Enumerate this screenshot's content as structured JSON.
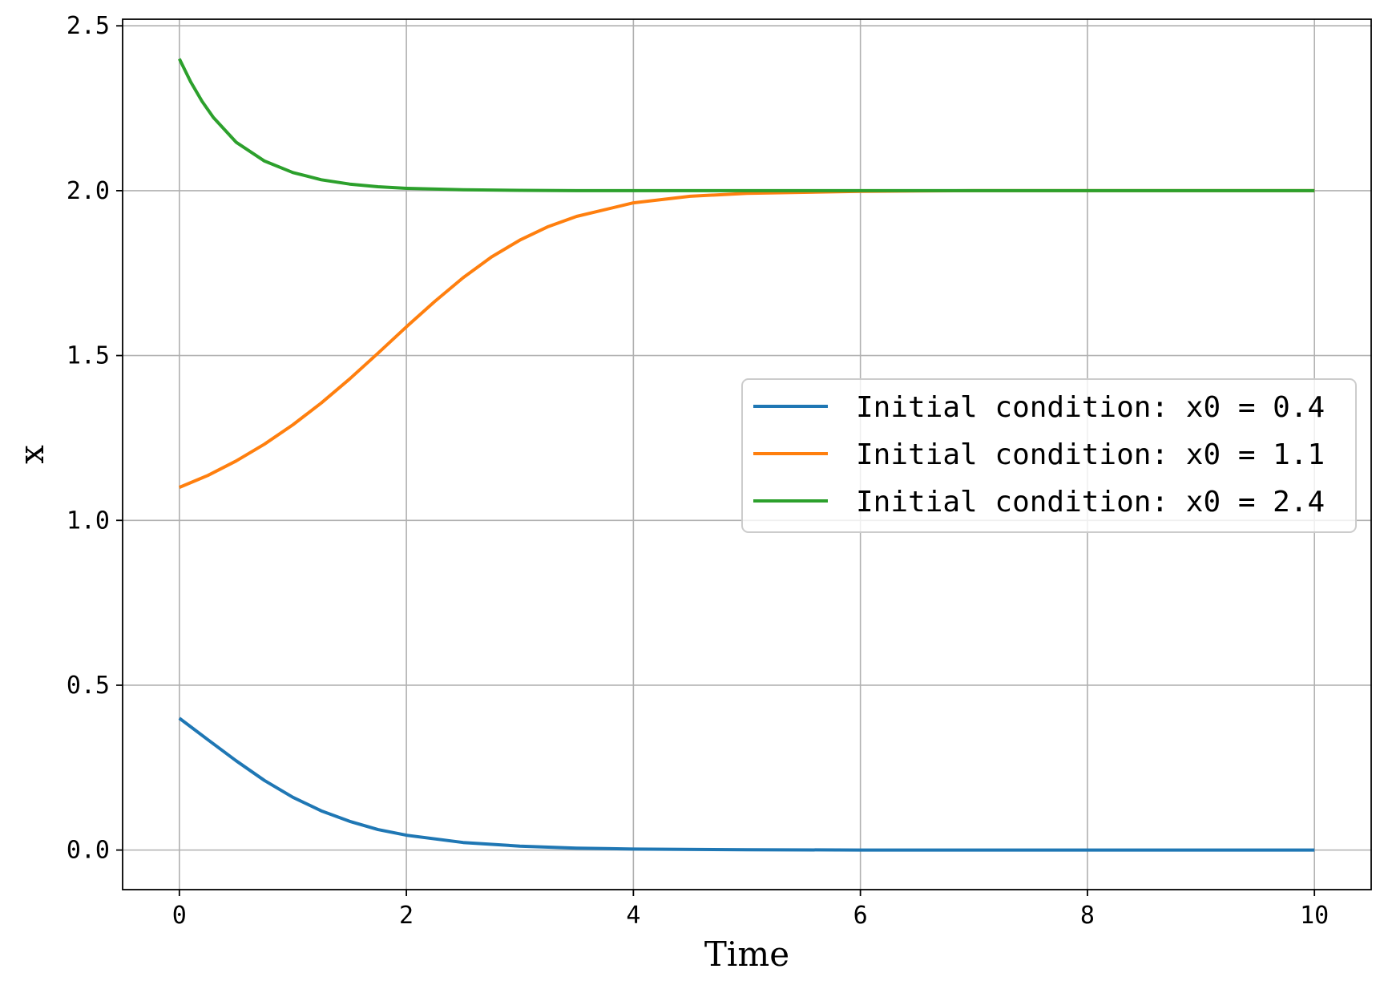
{
  "chart_data": {
    "type": "line",
    "xlabel": "Time",
    "ylabel": "x",
    "xlim": [
      -0.5,
      10.5
    ],
    "ylim": [
      -0.12,
      2.52
    ],
    "xticks": [
      0,
      2,
      4,
      6,
      8,
      10
    ],
    "xtick_labels": [
      "0",
      "2",
      "4",
      "6",
      "8",
      "10"
    ],
    "yticks": [
      0.0,
      0.5,
      1.0,
      1.5,
      2.0,
      2.5
    ],
    "ytick_labels": [
      "0.0",
      "0.5",
      "1.0",
      "1.5",
      "2.0",
      "2.5"
    ],
    "grid": true,
    "legend_position": "center-right",
    "series": [
      {
        "name": "Initial condition: x0 = 0.4",
        "color": "#1f77b4",
        "x": [
          0,
          0.25,
          0.5,
          0.75,
          1,
          1.25,
          1.5,
          1.75,
          2,
          2.5,
          3,
          3.5,
          4,
          5,
          6,
          7,
          8,
          9,
          10
        ],
        "y": [
          0.4,
          0.335,
          0.271,
          0.211,
          0.16,
          0.119,
          0.087,
          0.062,
          0.045,
          0.023,
          0.012,
          0.006,
          0.003,
          0.001,
          0.0,
          0.0,
          0.0,
          0.0,
          0.0
        ]
      },
      {
        "name": "Initial condition: x0 = 1.1",
        "color": "#ff7f0e",
        "x": [
          0,
          0.25,
          0.5,
          0.75,
          1,
          1.25,
          1.5,
          1.75,
          2,
          2.25,
          2.5,
          2.75,
          3,
          3.25,
          3.5,
          4,
          4.5,
          5,
          6,
          7,
          8,
          9,
          10
        ],
        "y": [
          1.1,
          1.136,
          1.18,
          1.231,
          1.29,
          1.356,
          1.429,
          1.507,
          1.587,
          1.664,
          1.736,
          1.799,
          1.85,
          1.891,
          1.922,
          1.963,
          1.983,
          1.992,
          1.998,
          2.0,
          2.0,
          2.0,
          2.0
        ]
      },
      {
        "name": "Initial condition: x0 = 2.4",
        "color": "#2ca02c",
        "x": [
          0,
          0.1,
          0.2,
          0.3,
          0.5,
          0.75,
          1,
          1.25,
          1.5,
          1.75,
          2,
          2.5,
          3,
          3.5,
          4,
          5,
          6,
          7,
          8,
          9,
          10
        ],
        "y": [
          2.4,
          2.33,
          2.271,
          2.222,
          2.147,
          2.09,
          2.055,
          2.033,
          2.02,
          2.012,
          2.007,
          2.003,
          2.001,
          2.0,
          2.0,
          2.0,
          2.0,
          2.0,
          2.0,
          2.0,
          2.0
        ]
      }
    ]
  }
}
